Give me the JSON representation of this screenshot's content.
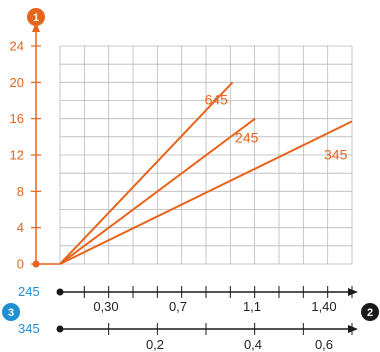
{
  "chart_data": {
    "type": "line",
    "colors": {
      "accent": "#e8641c",
      "grid": "#b9b9b9",
      "axis": "#1a1a1a",
      "marker_blue": "#1e8fd0"
    },
    "y_axis": {
      "marker": "1",
      "ticks": [
        "0",
        "4",
        "8",
        "12",
        "16",
        "20",
        "24"
      ],
      "range": [
        0,
        24
      ]
    },
    "x_axis_secondary": {
      "label": "245",
      "ticks": [
        "0,30",
        "0,7",
        "1,1",
        "1,40"
      ]
    },
    "x_axis_primary": {
      "label": "345",
      "ticks": [
        "0,2",
        "0,4",
        "0,6"
      ]
    },
    "left_marker": "3",
    "right_marker": "2",
    "grid": true,
    "series": [
      {
        "name": "645",
        "x_fraction_end": 0.591,
        "y_end": 20
      },
      {
        "name": "245",
        "x_fraction_end": 0.668,
        "y_end": 16
      },
      {
        "name": "345",
        "x_fraction_end": 1.0,
        "y_end": 15.7
      }
    ]
  }
}
